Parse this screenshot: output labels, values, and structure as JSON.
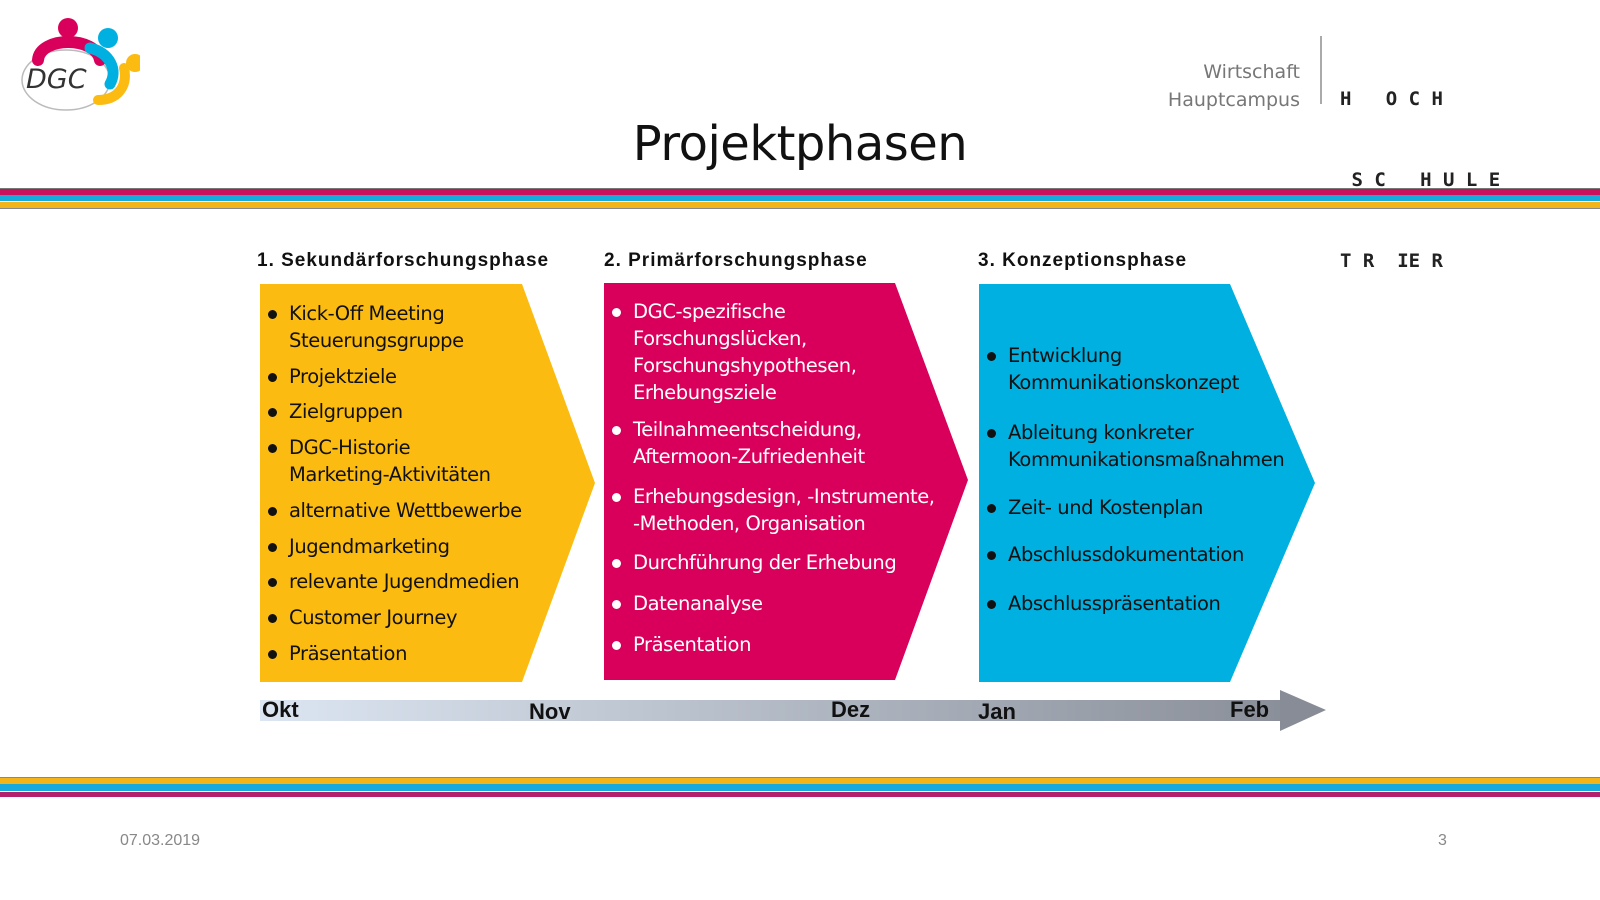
{
  "header": {
    "logo_text": "DGC",
    "school_department": "Wirtschaft",
    "school_campus": "Hauptcampus",
    "school_logo_lines": [
      "H   O C H",
      " S C   H U L E",
      "T R  IE R"
    ],
    "title": "Projektphasen"
  },
  "colors": {
    "magenta": "#d9005b",
    "blue": "#00b0e0",
    "yellow": "#fbbb10"
  },
  "phases": [
    {
      "heading": "1. Sekundärforschungsphase",
      "color": "#fbbb10",
      "text_color": "#111111",
      "items": [
        "Kick-Off Meeting\nSteuerungsgruppe",
        "Projektziele",
        "Zielgruppen",
        "DGC-Historie\nMarketing-Aktivitäten",
        "alternative Wettbewerbe",
        "Jugendmarketing",
        "relevante Jugendmedien",
        "Customer Journey",
        "Präsentation"
      ]
    },
    {
      "heading": "2. Primärforschungsphase",
      "color": "#d9005b",
      "text_color": "#ffffff",
      "items": [
        "DGC-spezifische\nForschungslücken,\nForschungshypothesen,\nErhebungsziele",
        "Teilnahmeentscheidung,\nAftermoon-Zufriedenheit",
        "Erhebungsdesign, -Instrumente,\n-Methoden, Organisation",
        "Durchführung der Erhebung",
        "Datenanalyse",
        "Präsentation"
      ]
    },
    {
      "heading": "3. Konzeptionsphase",
      "color": "#00b0e0",
      "text_color": "#111111",
      "items": [
        "Entwicklung\nKommunikationskonzept",
        "Ableitung konkreter\nKommunikationsmaßnahmen",
        "Zeit- und Kostenplan",
        "Abschlussdokumentation",
        "Abschlusspräsentation"
      ]
    }
  ],
  "timeline": {
    "months": [
      "Okt",
      "Nov",
      "Dez",
      "Jan",
      "Feb"
    ]
  },
  "footer": {
    "date": "07.03.2019",
    "page_number": "3"
  }
}
